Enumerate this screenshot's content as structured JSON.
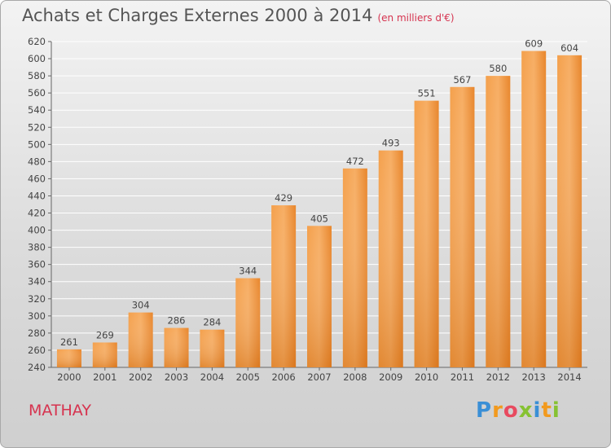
{
  "title": "Achats et Charges Externes 2000 à 2014",
  "unit": "(en milliers d'€)",
  "commune": "MATHAY",
  "logo": "Proxiti",
  "colors": {
    "bar_light": "#f7a95a",
    "bar_dark": "#e07f24",
    "title": "#555555",
    "accent": "#d6334f"
  },
  "chart_data": {
    "type": "bar",
    "title": "Achats et Charges Externes 2000 à 2014",
    "subtitle": "(en milliers d'€)",
    "categories": [
      "2000",
      "2001",
      "2002",
      "2003",
      "2004",
      "2005",
      "2006",
      "2007",
      "2008",
      "2009",
      "2010",
      "2011",
      "2012",
      "2013",
      "2014"
    ],
    "values": [
      261,
      269,
      304,
      286,
      284,
      344,
      429,
      405,
      472,
      493,
      551,
      567,
      580,
      609,
      604
    ],
    "ylim": [
      240,
      620
    ],
    "yticks": [
      240,
      260,
      280,
      300,
      320,
      340,
      360,
      380,
      400,
      420,
      440,
      460,
      480,
      500,
      520,
      540,
      560,
      580,
      600,
      620
    ],
    "grid": true,
    "legend": "none"
  }
}
